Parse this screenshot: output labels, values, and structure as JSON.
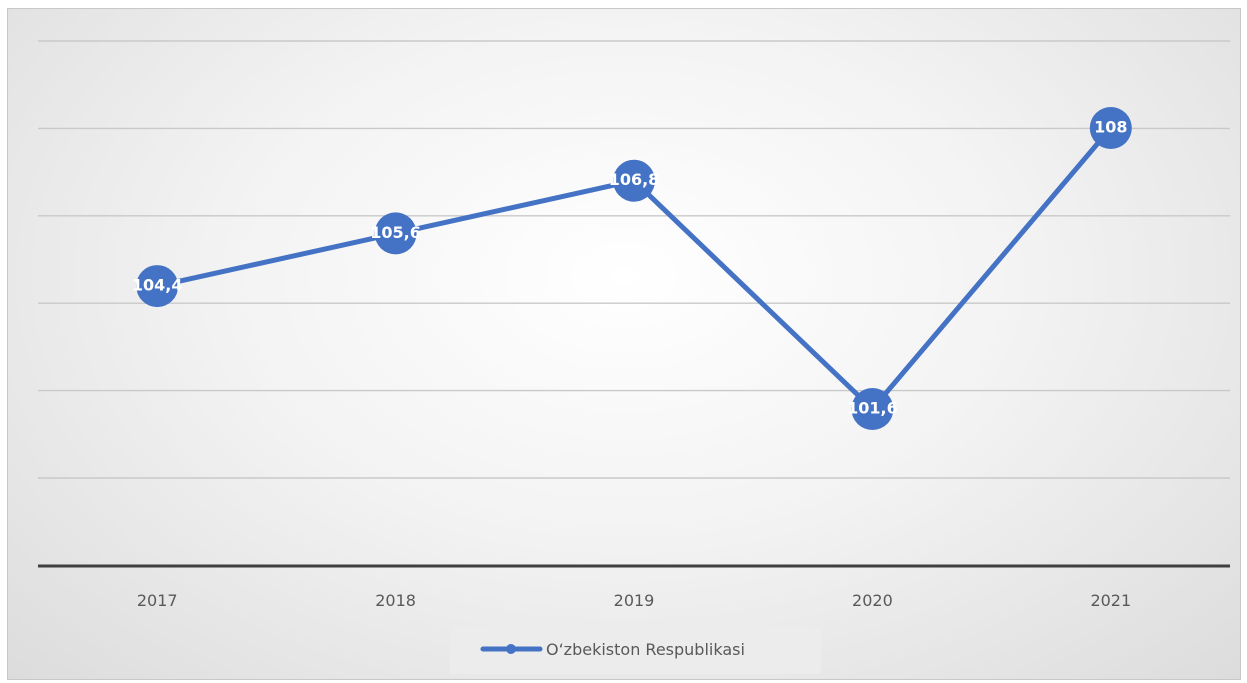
{
  "chart_data": {
    "type": "line",
    "categories": [
      "2017",
      "2018",
      "2019",
      "2020",
      "2021"
    ],
    "series": [
      {
        "name": "O‘zbekiston Respublikasi",
        "values": [
          104.4,
          105.6,
          106.8,
          101.6,
          108
        ],
        "labels": [
          "104,4",
          "105,6",
          "106,8",
          "101,6",
          "108"
        ],
        "color": "#4472C4"
      }
    ],
    "ylim": [
      99,
      109
    ],
    "y_gridlines": [
      100,
      101,
      102,
      104,
      106,
      108,
      110
    ],
    "grid": true,
    "y_tick_labels_shown": false,
    "legend_position": "bottom",
    "background": "light gray radial gradient"
  }
}
